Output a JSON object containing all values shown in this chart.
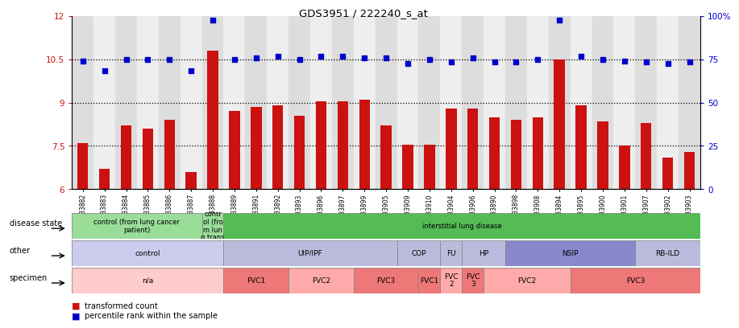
{
  "title": "GDS3951 / 222240_s_at",
  "samples": [
    "GSM533882",
    "GSM533883",
    "GSM533884",
    "GSM533885",
    "GSM533886",
    "GSM533887",
    "GSM533888",
    "GSM533889",
    "GSM533891",
    "GSM533892",
    "GSM533893",
    "GSM533896",
    "GSM533897",
    "GSM533899",
    "GSM533905",
    "GSM533909",
    "GSM533910",
    "GSM533904",
    "GSM533906",
    "GSM533890",
    "GSM533898",
    "GSM533908",
    "GSM533894",
    "GSM533895",
    "GSM533900",
    "GSM533901",
    "GSM533907",
    "GSM533902",
    "GSM533903"
  ],
  "bar_values": [
    7.6,
    6.7,
    8.2,
    8.1,
    8.4,
    6.6,
    10.8,
    8.7,
    8.85,
    8.9,
    8.55,
    9.05,
    9.05,
    9.1,
    8.2,
    7.55,
    7.55,
    8.8,
    8.8,
    8.5,
    8.4,
    8.5,
    10.5,
    8.9,
    8.35,
    7.5,
    8.3,
    7.1,
    7.3
  ],
  "dot_values": [
    10.45,
    10.1,
    10.5,
    10.5,
    10.5,
    10.1,
    11.85,
    10.5,
    10.55,
    10.6,
    10.5,
    10.6,
    10.6,
    10.55,
    10.55,
    10.35,
    10.5,
    10.4,
    10.55,
    10.4,
    10.4,
    10.5,
    11.85,
    10.6,
    10.5,
    10.45,
    10.4,
    10.35,
    10.4
  ],
  "ylim": [
    6,
    12
  ],
  "yticks_left": [
    6,
    7.5,
    9,
    10.5,
    12
  ],
  "yticks_right_labels": [
    "0",
    "25",
    "50",
    "75",
    "100%"
  ],
  "dotted_lines": [
    7.5,
    9,
    10.5
  ],
  "bar_color": "#CC1111",
  "dot_color": "#0000CC",
  "disease_state_groups": [
    {
      "label": "control (from lung cancer\npatient)",
      "start": 0,
      "end": 6,
      "color": "#99DD99"
    },
    {
      "label": "contr\nol (fro\nm lun\ng trans",
      "start": 6,
      "end": 7,
      "color": "#99DD99"
    },
    {
      "label": "interstitial lung disease",
      "start": 7,
      "end": 29,
      "color": "#55BB55"
    }
  ],
  "other_groups": [
    {
      "label": "control",
      "start": 0,
      "end": 7,
      "color": "#CCCCEE"
    },
    {
      "label": "UIP/IPF",
      "start": 7,
      "end": 15,
      "color": "#BBBBDD"
    },
    {
      "label": "COP",
      "start": 15,
      "end": 17,
      "color": "#BBBBDD"
    },
    {
      "label": "FU",
      "start": 17,
      "end": 18,
      "color": "#BBBBDD"
    },
    {
      "label": "HP",
      "start": 18,
      "end": 20,
      "color": "#BBBBDD"
    },
    {
      "label": "NSIP",
      "start": 20,
      "end": 26,
      "color": "#8888CC"
    },
    {
      "label": "RB-ILD",
      "start": 26,
      "end": 29,
      "color": "#BBBBDD"
    }
  ],
  "specimen_groups": [
    {
      "label": "n/a",
      "start": 0,
      "end": 7,
      "color": "#FFCCCC"
    },
    {
      "label": "FVC1",
      "start": 7,
      "end": 10,
      "color": "#EE7777"
    },
    {
      "label": "FVC2",
      "start": 10,
      "end": 13,
      "color": "#FFAAAA"
    },
    {
      "label": "FVC3",
      "start": 13,
      "end": 16,
      "color": "#EE7777"
    },
    {
      "label": "FVC1",
      "start": 16,
      "end": 17,
      "color": "#EE7777"
    },
    {
      "label": "FVC\n2",
      "start": 17,
      "end": 18,
      "color": "#FFAAAA"
    },
    {
      "label": "FVC\n3",
      "start": 18,
      "end": 19,
      "color": "#EE7777"
    },
    {
      "label": "FVC2",
      "start": 19,
      "end": 23,
      "color": "#FFAAAA"
    },
    {
      "label": "FVC3",
      "start": 23,
      "end": 29,
      "color": "#EE7777"
    }
  ],
  "legend_bar_label": "transformed count",
  "legend_dot_label": "percentile rank within the sample"
}
